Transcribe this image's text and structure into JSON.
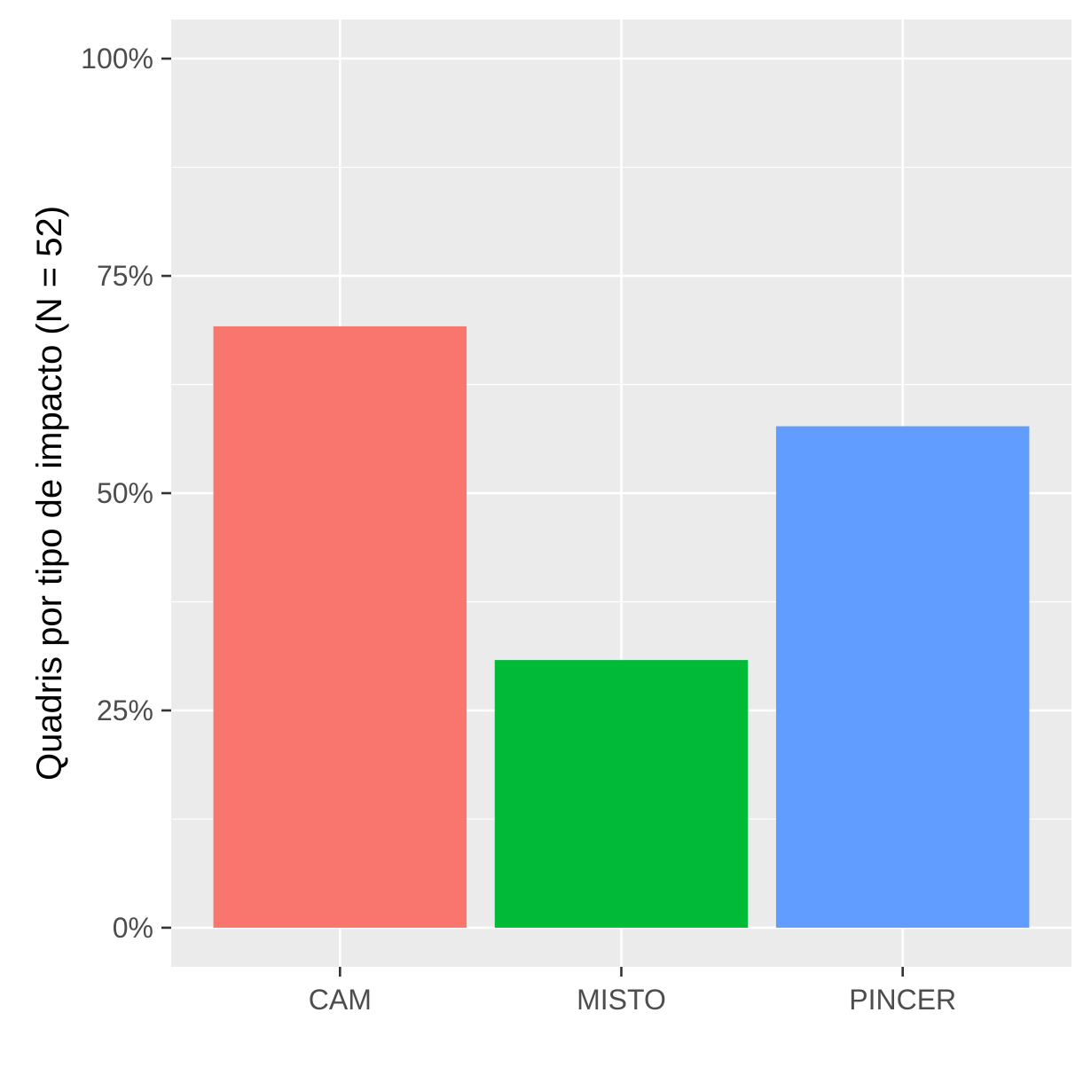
{
  "chart_data": {
    "type": "bar",
    "categories": [
      "CAM",
      "MISTO",
      "PINCER"
    ],
    "values": [
      69.2,
      30.8,
      57.7
    ],
    "value_unit": "%",
    "colors": [
      "#F8766D",
      "#00BA38",
      "#619CFF"
    ],
    "title": "",
    "xlabel": "",
    "ylabel": "Quadris por tipo de impacto (N = 52)",
    "ylim": [
      -4.5,
      104.5
    ],
    "yticks": [
      0,
      25,
      50,
      75,
      100
    ],
    "ytick_labels": [
      "0%",
      "25%",
      "50%",
      "75%",
      "100%"
    ],
    "grid": true,
    "panel_background": "#EBEBEB",
    "grid_color": "#FFFFFF",
    "legend": "none"
  }
}
